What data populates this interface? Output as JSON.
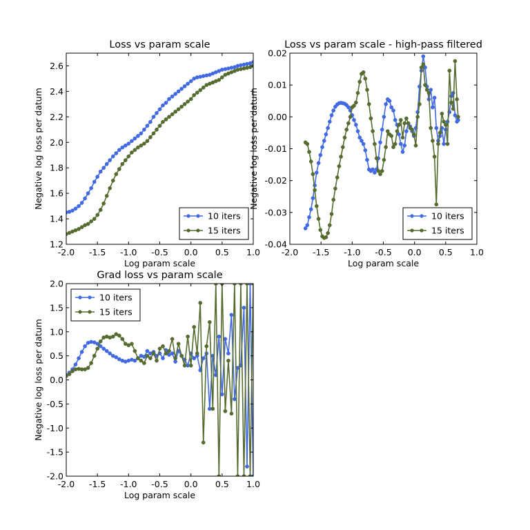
{
  "colors": {
    "series1": "#4169e1",
    "series2": "#556b2f"
  },
  "chart_data": [
    {
      "type": "line",
      "title": "Loss vs param scale",
      "xlabel": "Log param scale",
      "ylabel": "Negative log loss per datum",
      "xlim": [
        -2.0,
        1.0
      ],
      "ylim": [
        1.2,
        2.7
      ],
      "xticks": [
        -2.0,
        -1.5,
        -1.0,
        -0.5,
        0.0,
        0.5,
        1.0
      ],
      "xtick_labels": [
        "-2.0",
        "-1.5",
        "-1.0",
        "-0.5",
        "0.0",
        "0.5",
        "1.0"
      ],
      "yticks": [
        1.2,
        1.4,
        1.6,
        1.8,
        2.0,
        2.2,
        2.4,
        2.6
      ],
      "ytick_labels": [
        "1.2",
        "1.4",
        "1.6",
        "1.8",
        "2.0",
        "2.2",
        "2.4",
        "2.6"
      ],
      "legend": "lower-right",
      "series": [
        {
          "name": "10 iters",
          "x": [
            -2.0,
            -1.95,
            -1.9,
            -1.85,
            -1.8,
            -1.75,
            -1.7,
            -1.65,
            -1.6,
            -1.55,
            -1.5,
            -1.45,
            -1.4,
            -1.35,
            -1.3,
            -1.25,
            -1.2,
            -1.15,
            -1.1,
            -1.05,
            -1.0,
            -0.95,
            -0.9,
            -0.85,
            -0.8,
            -0.75,
            -0.7,
            -0.65,
            -0.6,
            -0.55,
            -0.5,
            -0.45,
            -0.4,
            -0.35,
            -0.3,
            -0.25,
            -0.2,
            -0.15,
            -0.1,
            -0.05,
            0.0,
            0.05,
            0.1,
            0.15,
            0.2,
            0.25,
            0.3,
            0.35,
            0.4,
            0.45,
            0.5,
            0.55,
            0.6,
            0.65,
            0.7,
            0.75,
            0.8,
            0.85,
            0.9,
            0.95,
            1.0
          ],
          "y": [
            1.45,
            1.455,
            1.465,
            1.48,
            1.5,
            1.525,
            1.56,
            1.6,
            1.64,
            1.69,
            1.73,
            1.77,
            1.8,
            1.83,
            1.86,
            1.89,
            1.915,
            1.94,
            1.96,
            1.975,
            1.99,
            2.01,
            2.03,
            2.05,
            2.07,
            2.1,
            2.13,
            2.16,
            2.2,
            2.23,
            2.26,
            2.29,
            2.31,
            2.34,
            2.36,
            2.38,
            2.4,
            2.42,
            2.44,
            2.46,
            2.48,
            2.5,
            2.51,
            2.515,
            2.52,
            2.525,
            2.53,
            2.54,
            2.55,
            2.56,
            2.57,
            2.575,
            2.58,
            2.585,
            2.59,
            2.6,
            2.605,
            2.61,
            2.615,
            2.62,
            2.63
          ]
        },
        {
          "name": "15 iters",
          "x": [
            -2.0,
            -1.95,
            -1.9,
            -1.85,
            -1.8,
            -1.75,
            -1.7,
            -1.65,
            -1.6,
            -1.55,
            -1.5,
            -1.45,
            -1.4,
            -1.35,
            -1.3,
            -1.25,
            -1.2,
            -1.15,
            -1.1,
            -1.05,
            -1.0,
            -0.95,
            -0.9,
            -0.85,
            -0.8,
            -0.75,
            -0.7,
            -0.65,
            -0.6,
            -0.55,
            -0.5,
            -0.45,
            -0.4,
            -0.35,
            -0.3,
            -0.25,
            -0.2,
            -0.15,
            -0.1,
            -0.05,
            0.0,
            0.05,
            0.1,
            0.15,
            0.2,
            0.25,
            0.3,
            0.35,
            0.4,
            0.45,
            0.5,
            0.55,
            0.6,
            0.65,
            0.7,
            0.75,
            0.8,
            0.85,
            0.9,
            0.95,
            1.0
          ],
          "y": [
            1.28,
            1.29,
            1.3,
            1.31,
            1.32,
            1.335,
            1.35,
            1.36,
            1.38,
            1.4,
            1.43,
            1.47,
            1.52,
            1.58,
            1.64,
            1.7,
            1.75,
            1.79,
            1.83,
            1.86,
            1.89,
            1.92,
            1.94,
            1.96,
            1.975,
            1.99,
            2.01,
            2.04,
            2.07,
            2.1,
            2.13,
            2.16,
            2.18,
            2.2,
            2.22,
            2.24,
            2.26,
            2.28,
            2.3,
            2.32,
            2.34,
            2.37,
            2.39,
            2.41,
            2.43,
            2.45,
            2.46,
            2.47,
            2.48,
            2.49,
            2.51,
            2.53,
            2.54,
            2.55,
            2.56,
            2.57,
            2.575,
            2.58,
            2.585,
            2.59,
            2.6
          ]
        }
      ]
    },
    {
      "type": "line",
      "title": "Loss vs param scale - high-pass filtered",
      "xlabel": "Log param scale",
      "ylabel": "Negative log loss per datum",
      "xlim": [
        -2.0,
        1.0
      ],
      "ylim": [
        -0.04,
        0.02
      ],
      "xticks": [
        -2.0,
        -1.5,
        -1.0,
        -0.5,
        0.0,
        0.5,
        1.0
      ],
      "xtick_labels": [
        "-2.0",
        "-1.5",
        "-1.0",
        "-0.5",
        "0.0",
        "0.5",
        "1.0"
      ],
      "yticks": [
        -0.04,
        -0.03,
        -0.02,
        -0.01,
        0.0,
        0.01,
        0.02
      ],
      "ytick_labels": [
        "-0.04",
        "-0.03",
        "-0.02",
        "-0.01",
        "0.00",
        "0.01",
        "0.02"
      ],
      "legend": "lower-right",
      "series": [
        {
          "name": "10 iters",
          "x": [
            -1.75,
            -1.72,
            -1.69,
            -1.66,
            -1.63,
            -1.6,
            -1.57,
            -1.54,
            -1.51,
            -1.48,
            -1.45,
            -1.42,
            -1.39,
            -1.36,
            -1.33,
            -1.3,
            -1.27,
            -1.24,
            -1.21,
            -1.18,
            -1.15,
            -1.12,
            -1.09,
            -1.06,
            -1.03,
            -1.0,
            -0.97,
            -0.94,
            -0.91,
            -0.88,
            -0.85,
            -0.82,
            -0.79,
            -0.76,
            -0.73,
            -0.7,
            -0.67,
            -0.64,
            -0.61,
            -0.58,
            -0.55,
            -0.52,
            -0.49,
            -0.46,
            -0.43,
            -0.4,
            -0.37,
            -0.34,
            -0.31,
            -0.28,
            -0.25,
            -0.22,
            -0.19,
            -0.16,
            -0.13,
            -0.1,
            -0.07,
            -0.04,
            -0.01,
            0.02,
            0.05,
            0.08,
            0.11,
            0.14,
            0.17,
            0.2,
            0.23,
            0.26,
            0.29,
            0.32,
            0.35,
            0.38,
            0.41,
            0.44,
            0.47,
            0.5,
            0.53,
            0.56,
            0.59,
            0.62,
            0.65,
            0.68,
            0.7
          ],
          "y": [
            -0.035,
            -0.034,
            -0.0315,
            -0.029,
            -0.0255,
            -0.0215,
            -0.0175,
            -0.0145,
            -0.012,
            -0.0095,
            -0.0075,
            -0.0055,
            -0.0035,
            -0.0015,
            0.0005,
            0.002,
            0.0032,
            0.0039,
            0.0043,
            0.0044,
            0.0043,
            0.0041,
            0.0037,
            0.003,
            0.002,
            0.0005,
            -0.001,
            -0.0025,
            -0.0045,
            -0.0065,
            -0.0075,
            -0.0085,
            -0.0105,
            -0.0135,
            -0.0165,
            -0.017,
            -0.0165,
            -0.0175,
            -0.0165,
            -0.013,
            -0.008,
            -0.004,
            0.0,
            0.004,
            0.0055,
            0.005,
            0.003,
            0.002,
            -0.001,
            -0.0025,
            -0.0055,
            -0.0085,
            -0.011,
            -0.009,
            -0.0045,
            -0.002,
            -0.003,
            -0.0045,
            -0.006,
            -0.0035,
            0.0015,
            0.0095,
            0.0145,
            0.019,
            0.0155,
            0.0095,
            0.0055,
            0.0085,
            0.003,
            0.006,
            -0.0035,
            -0.0075,
            -0.006,
            -0.0035,
            -0.0085,
            -0.004,
            -0.0015,
            0.0015,
            0.0065,
            0.0075,
            0.0005,
            -0.0015,
            -0.001
          ]
        },
        {
          "name": "15 iters",
          "x": [
            -1.75,
            -1.72,
            -1.69,
            -1.66,
            -1.63,
            -1.6,
            -1.57,
            -1.54,
            -1.51,
            -1.48,
            -1.45,
            -1.42,
            -1.39,
            -1.36,
            -1.33,
            -1.3,
            -1.27,
            -1.24,
            -1.21,
            -1.18,
            -1.15,
            -1.12,
            -1.09,
            -1.06,
            -1.03,
            -1.0,
            -0.97,
            -0.94,
            -0.91,
            -0.88,
            -0.85,
            -0.82,
            -0.79,
            -0.76,
            -0.73,
            -0.7,
            -0.67,
            -0.64,
            -0.61,
            -0.58,
            -0.55,
            -0.52,
            -0.49,
            -0.46,
            -0.43,
            -0.4,
            -0.37,
            -0.34,
            -0.31,
            -0.28,
            -0.25,
            -0.22,
            -0.19,
            -0.16,
            -0.13,
            -0.1,
            -0.07,
            -0.04,
            -0.01,
            0.02,
            0.05,
            0.08,
            0.11,
            0.14,
            0.17,
            0.2,
            0.23,
            0.26,
            0.29,
            0.32,
            0.35,
            0.38,
            0.41,
            0.44,
            0.47,
            0.5,
            0.53,
            0.56,
            0.59,
            0.62,
            0.65,
            0.68,
            0.7
          ],
          "y": [
            -0.008,
            -0.0085,
            -0.011,
            -0.014,
            -0.018,
            -0.023,
            -0.028,
            -0.032,
            -0.0355,
            -0.0375,
            -0.038,
            -0.0378,
            -0.0365,
            -0.034,
            -0.0305,
            -0.026,
            -0.0225,
            -0.019,
            -0.0155,
            -0.0125,
            -0.0095,
            -0.0065,
            -0.004,
            -0.002,
            0.0,
            0.003,
            0.0035,
            0.0045,
            0.0075,
            0.011,
            0.0135,
            0.014,
            0.012,
            0.0085,
            0.004,
            -0.0005,
            -0.0045,
            -0.0085,
            -0.013,
            -0.017,
            -0.018,
            -0.017,
            -0.0135,
            -0.0095,
            -0.0045,
            -0.0055,
            -0.006,
            -0.0095,
            -0.0085,
            -0.0045,
            -0.0025,
            -0.001,
            -0.0065,
            -0.002,
            -0.0005,
            -0.002,
            -0.0035,
            -0.004,
            -0.0055,
            -0.009,
            0.0,
            0.004,
            0.0155,
            0.0165,
            0.01,
            0.0085,
            0.0075,
            -0.0035,
            -0.0075,
            -0.0125,
            -0.0275,
            -0.0085,
            -0.005,
            0.001,
            -0.0015,
            -0.0025,
            -0.0085,
            0.0145,
            0.0045,
            0.0025,
            0.0175,
            0.0055,
            0.0
          ]
        }
      ]
    },
    {
      "type": "line",
      "title": "Grad loss vs param scale",
      "xlabel": "Log param scale",
      "ylabel": "Negative log loss per datum",
      "xlim": [
        -2.0,
        1.0
      ],
      "ylim": [
        -2.0,
        2.0
      ],
      "xticks": [
        -2.0,
        -1.5,
        -1.0,
        -0.5,
        0.0,
        0.5,
        1.0
      ],
      "xtick_labels": [
        "-2.0",
        "-1.5",
        "-1.0",
        "-0.5",
        "0.0",
        "0.5",
        "1.0"
      ],
      "yticks": [
        -2.0,
        -1.5,
        -1.0,
        -0.5,
        0.0,
        0.5,
        1.0,
        1.5,
        2.0
      ],
      "ytick_labels": [
        "-2.0",
        "-1.5",
        "-1.0",
        "-0.5",
        "0.0",
        "0.5",
        "1.0",
        "1.5",
        "2.0"
      ],
      "legend": "upper-left",
      "series": [
        {
          "name": "10 iters",
          "x": [
            -2.0,
            -1.95,
            -1.9,
            -1.85,
            -1.8,
            -1.75,
            -1.7,
            -1.65,
            -1.6,
            -1.55,
            -1.5,
            -1.45,
            -1.4,
            -1.35,
            -1.3,
            -1.25,
            -1.2,
            -1.15,
            -1.1,
            -1.05,
            -1.0,
            -0.95,
            -0.9,
            -0.85,
            -0.8,
            -0.75,
            -0.7,
            -0.65,
            -0.6,
            -0.55,
            -0.5,
            -0.45,
            -0.4,
            -0.35,
            -0.3,
            -0.25,
            -0.2,
            -0.15,
            -0.1,
            -0.05,
            0.0,
            0.05,
            0.1,
            0.15,
            0.2,
            0.25,
            0.3,
            0.35,
            0.4,
            0.45,
            0.5,
            0.55,
            0.6,
            0.65,
            0.7,
            0.75,
            0.8,
            0.85,
            0.9,
            0.95,
            1.0
          ],
          "y": [
            0.1,
            0.15,
            0.22,
            0.32,
            0.45,
            0.58,
            0.7,
            0.77,
            0.79,
            0.78,
            0.75,
            0.7,
            0.65,
            0.6,
            0.55,
            0.5,
            0.47,
            0.43,
            0.4,
            0.38,
            0.4,
            0.42,
            0.4,
            0.45,
            0.5,
            0.48,
            0.6,
            0.55,
            0.58,
            0.5,
            0.55,
            0.45,
            0.62,
            0.52,
            0.55,
            0.38,
            0.6,
            0.5,
            0.42,
            0.3,
            0.55,
            0.45,
            0.5,
            0.2,
            0.45,
            0.55,
            -0.6,
            0.5,
            0.1,
            0.9,
            -0.3,
            0.85,
            0.55,
            1.35,
            -0.4,
            0.25,
            0.3,
            1.5,
            -1.8,
            2.0,
            -2.0
          ]
        },
        {
          "name": "15 iters",
          "x": [
            -2.0,
            -1.95,
            -1.9,
            -1.85,
            -1.8,
            -1.75,
            -1.7,
            -1.65,
            -1.6,
            -1.55,
            -1.5,
            -1.45,
            -1.4,
            -1.35,
            -1.3,
            -1.25,
            -1.2,
            -1.15,
            -1.1,
            -1.05,
            -1.0,
            -0.95,
            -0.9,
            -0.85,
            -0.8,
            -0.75,
            -0.7,
            -0.65,
            -0.6,
            -0.55,
            -0.5,
            -0.45,
            -0.4,
            -0.35,
            -0.3,
            -0.25,
            -0.2,
            -0.15,
            -0.1,
            -0.05,
            0.0,
            0.05,
            0.1,
            0.15,
            0.2,
            0.25,
            0.3,
            0.35,
            0.4,
            0.45,
            0.5,
            0.55,
            0.6,
            0.65,
            0.7,
            0.75,
            0.8,
            0.85,
            0.9,
            0.95,
            1.0
          ],
          "y": [
            0.08,
            0.12,
            0.18,
            0.22,
            0.23,
            0.22,
            0.22,
            0.25,
            0.35,
            0.5,
            0.65,
            0.8,
            0.88,
            0.9,
            0.88,
            0.9,
            0.95,
            0.92,
            0.85,
            0.75,
            0.72,
            0.75,
            0.6,
            0.45,
            0.4,
            0.35,
            0.5,
            0.45,
            0.55,
            0.4,
            0.65,
            0.7,
            0.55,
            0.6,
            0.85,
            0.45,
            0.75,
            0.5,
            0.3,
            0.9,
            0.3,
            1.1,
            0.55,
            1.6,
            -1.3,
            0.7,
            1.2,
            -0.6,
            2.0,
            -2.0,
            2.0,
            -0.65,
            0.4,
            -0.7,
            2.0,
            -2.0,
            2.0,
            -2.0,
            2.0,
            -2.0,
            2.0
          ]
        }
      ]
    }
  ]
}
